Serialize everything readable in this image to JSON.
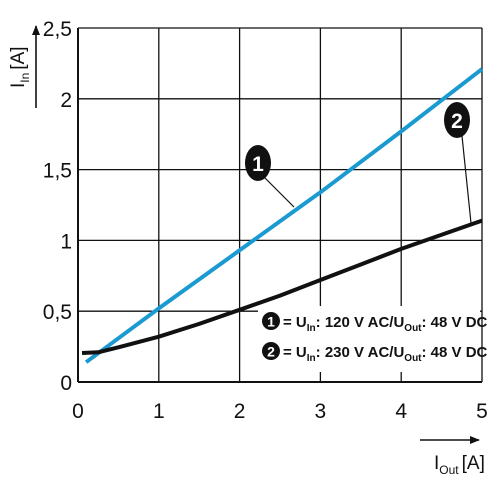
{
  "chart_data": {
    "type": "line",
    "xlabel": {
      "main": "I",
      "sub": "Out",
      "unit": "[A]"
    },
    "ylabel": {
      "main": "I",
      "sub": "In",
      "unit": "[A]"
    },
    "xlim": [
      0,
      5
    ],
    "ylim": [
      0,
      2.5
    ],
    "xticks": [
      "0",
      "1",
      "2",
      "3",
      "4",
      "5"
    ],
    "yticks": [
      "0",
      "0,5",
      "1",
      "1,5",
      "2",
      "2,5"
    ],
    "grid": true,
    "legend_position": "bottom-right",
    "series": [
      {
        "id": "1",
        "color": "#1b9ad2",
        "x": [
          0.1,
          1,
          2,
          3,
          4,
          5
        ],
        "y": [
          0.14,
          0.52,
          0.93,
          1.34,
          1.77,
          2.21
        ]
      },
      {
        "id": "2",
        "color": "#111111",
        "x": [
          0.05,
          0.25,
          0.5,
          1,
          1.5,
          2,
          2.5,
          3,
          3.5,
          4,
          4.5,
          5
        ],
        "y": [
          0.205,
          0.21,
          0.245,
          0.32,
          0.41,
          0.51,
          0.61,
          0.72,
          0.83,
          0.94,
          1.04,
          1.14
        ]
      }
    ],
    "legend": [
      {
        "marker": "1",
        "prefix": "= U",
        "in_sub": "In",
        "mid": ": 120 V AC/U",
        "out_sub": "Out",
        "suffix": ": 48 V DC"
      },
      {
        "marker": "2",
        "prefix": "= U",
        "in_sub": "In",
        "mid": ": 230 V AC/U",
        "out_sub": "Out",
        "suffix": ": 48 V DC"
      }
    ]
  }
}
